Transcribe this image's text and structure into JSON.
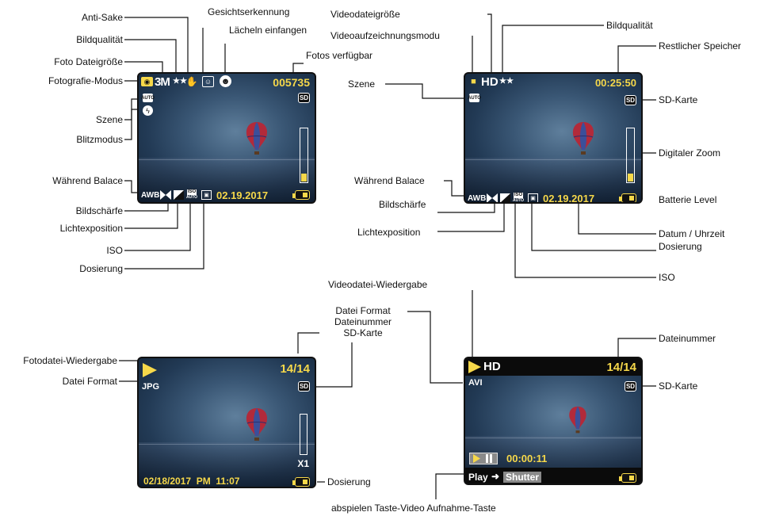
{
  "colors": {
    "accent": "#f6d84a",
    "line": "#111111"
  },
  "photo_mode": {
    "labels": {
      "anti_shake": "Anti-Sake",
      "image_quality": "Bildqualität",
      "photo_size": "Foto Dateigröße",
      "photo_mode": "Fotografie-Modus",
      "face_detection": "Gesichtserkennung",
      "smile_capture": "Lächeln einfangen",
      "photos_available": "Fotos verfügbar",
      "scene": "Szene",
      "flash_mode": "Blitzmodus",
      "white_balance": "Während Balace",
      "sharpness": "Bildschärfe",
      "exposure": "Lichtexposition",
      "iso": "ISO",
      "metering": "Dosierung"
    },
    "screen": {
      "size_code": "3M",
      "quality_stars": "★★",
      "count": "005735",
      "awb": "AWB",
      "date": "02.19.2017",
      "iso_text": "ISO",
      "iso_sub": "AUTO",
      "auto_badge": "AUTO",
      "sd": "SD",
      "zoom_level": 0.15,
      "battery_level": 0.5
    }
  },
  "video_mode": {
    "labels": {
      "video_file_size": "Videodateigröße",
      "video_record_mode": "Videoaufzeichnungsmodu",
      "image_quality": "Bildqualität",
      "remaining_memory": "Restlicher Speicher",
      "scene": "Szene",
      "sd_card": "SD-Karte",
      "digital_zoom": "Digitaler Zoom",
      "white_balance": "Während Balace",
      "sharpness": "Bildschärfe",
      "battery": "Batterie Level",
      "exposure": "Lichtexposition",
      "datetime": "Datum / Uhrzeit",
      "metering": "Dosierung",
      "iso": "ISO"
    },
    "screen": {
      "hd": "HD",
      "quality_stars": "★★",
      "time": "00:25:50",
      "awb": "AWB",
      "date": "02.19.2017",
      "iso_text": "ISO",
      "iso_sub": "AUTO",
      "auto_badge": "AUTO",
      "sd": "SD",
      "zoom_level": 0.15,
      "battery_level": 0.5
    }
  },
  "photo_playback": {
    "labels": {
      "photo_playback": "Fotodatei-Wiedergabe",
      "file_format": "Datei Format",
      "format_number_sd": "Datei Format\nDateinummer\nSD-Karte",
      "metering": "Dosierung"
    },
    "screen": {
      "format": "JPG",
      "counter": "14/14",
      "zoom": "X1",
      "datetime": "02/18/2017  PM  11:07",
      "sd": "SD",
      "battery_level": 0.5
    }
  },
  "video_playback": {
    "labels": {
      "video_playback": "Videodatei-Wiedergabe",
      "file_number": "Dateinummer",
      "sd_card": "SD-Karte",
      "play_shutter_keys": "abspielen Taste-Video Aufnahme-Taste"
    },
    "screen": {
      "hd": "HD",
      "format": "AVI",
      "counter": "14/14",
      "elapsed": "00:00:11",
      "play_label": "Play",
      "shutter_label": "Shutter",
      "sd": "SD",
      "battery_level": 0.5
    }
  }
}
